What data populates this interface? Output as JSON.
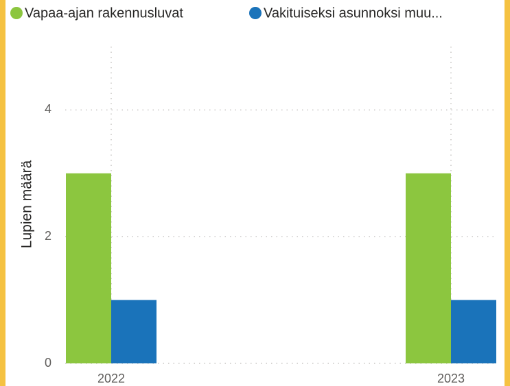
{
  "chart_data": {
    "type": "bar",
    "categories": [
      "2022",
      "2023"
    ],
    "series": [
      {
        "name": "Vapaa-ajan rakennusluvat",
        "color": "#8cc63f",
        "values": [
          3,
          3
        ]
      },
      {
        "name": "Vakituiseksi asunnoksi muu...",
        "color": "#1a73ba",
        "values": [
          1,
          1
        ]
      }
    ],
    "y_label": "Lupien määrä",
    "ylim": [
      0,
      5
    ],
    "yticks": [
      0,
      2,
      4
    ],
    "grid": true
  }
}
